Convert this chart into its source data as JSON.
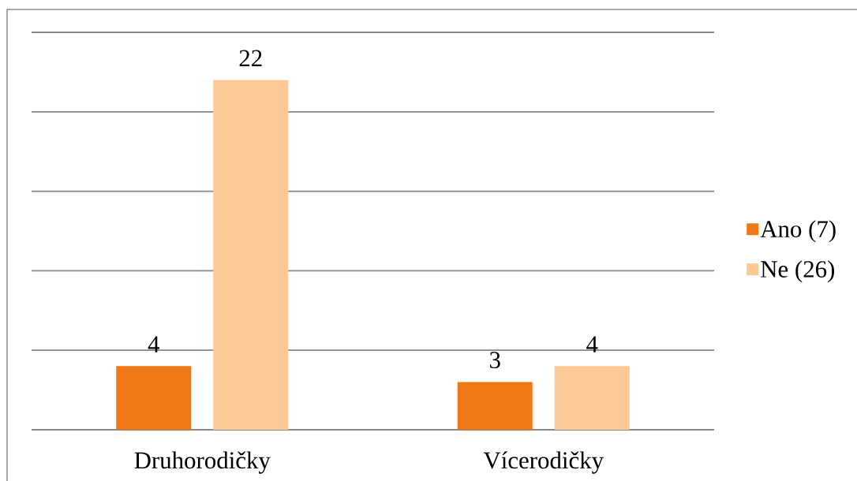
{
  "chart_data": {
    "type": "bar",
    "categories": [
      "Druhorodičky",
      "Vícerodičky"
    ],
    "series": [
      {
        "name": "Ano (7)",
        "color": "#f07814",
        "values": [
          4,
          3
        ]
      },
      {
        "name": "Ne (26)",
        "color": "#fcc997",
        "values": [
          22,
          4
        ]
      }
    ],
    "ylim": [
      0,
      25
    ],
    "yticks": [
      {
        "value": 0,
        "label": null
      },
      {
        "value": 5,
        "label": null
      },
      {
        "value": 10,
        "label": null
      },
      {
        "value": 15,
        "label": null
      },
      {
        "value": 20,
        "label": null
      },
      {
        "value": 25,
        "label": null
      }
    ],
    "grid": "y",
    "legend": "right",
    "data_labels": true,
    "tick_labels": "x"
  }
}
